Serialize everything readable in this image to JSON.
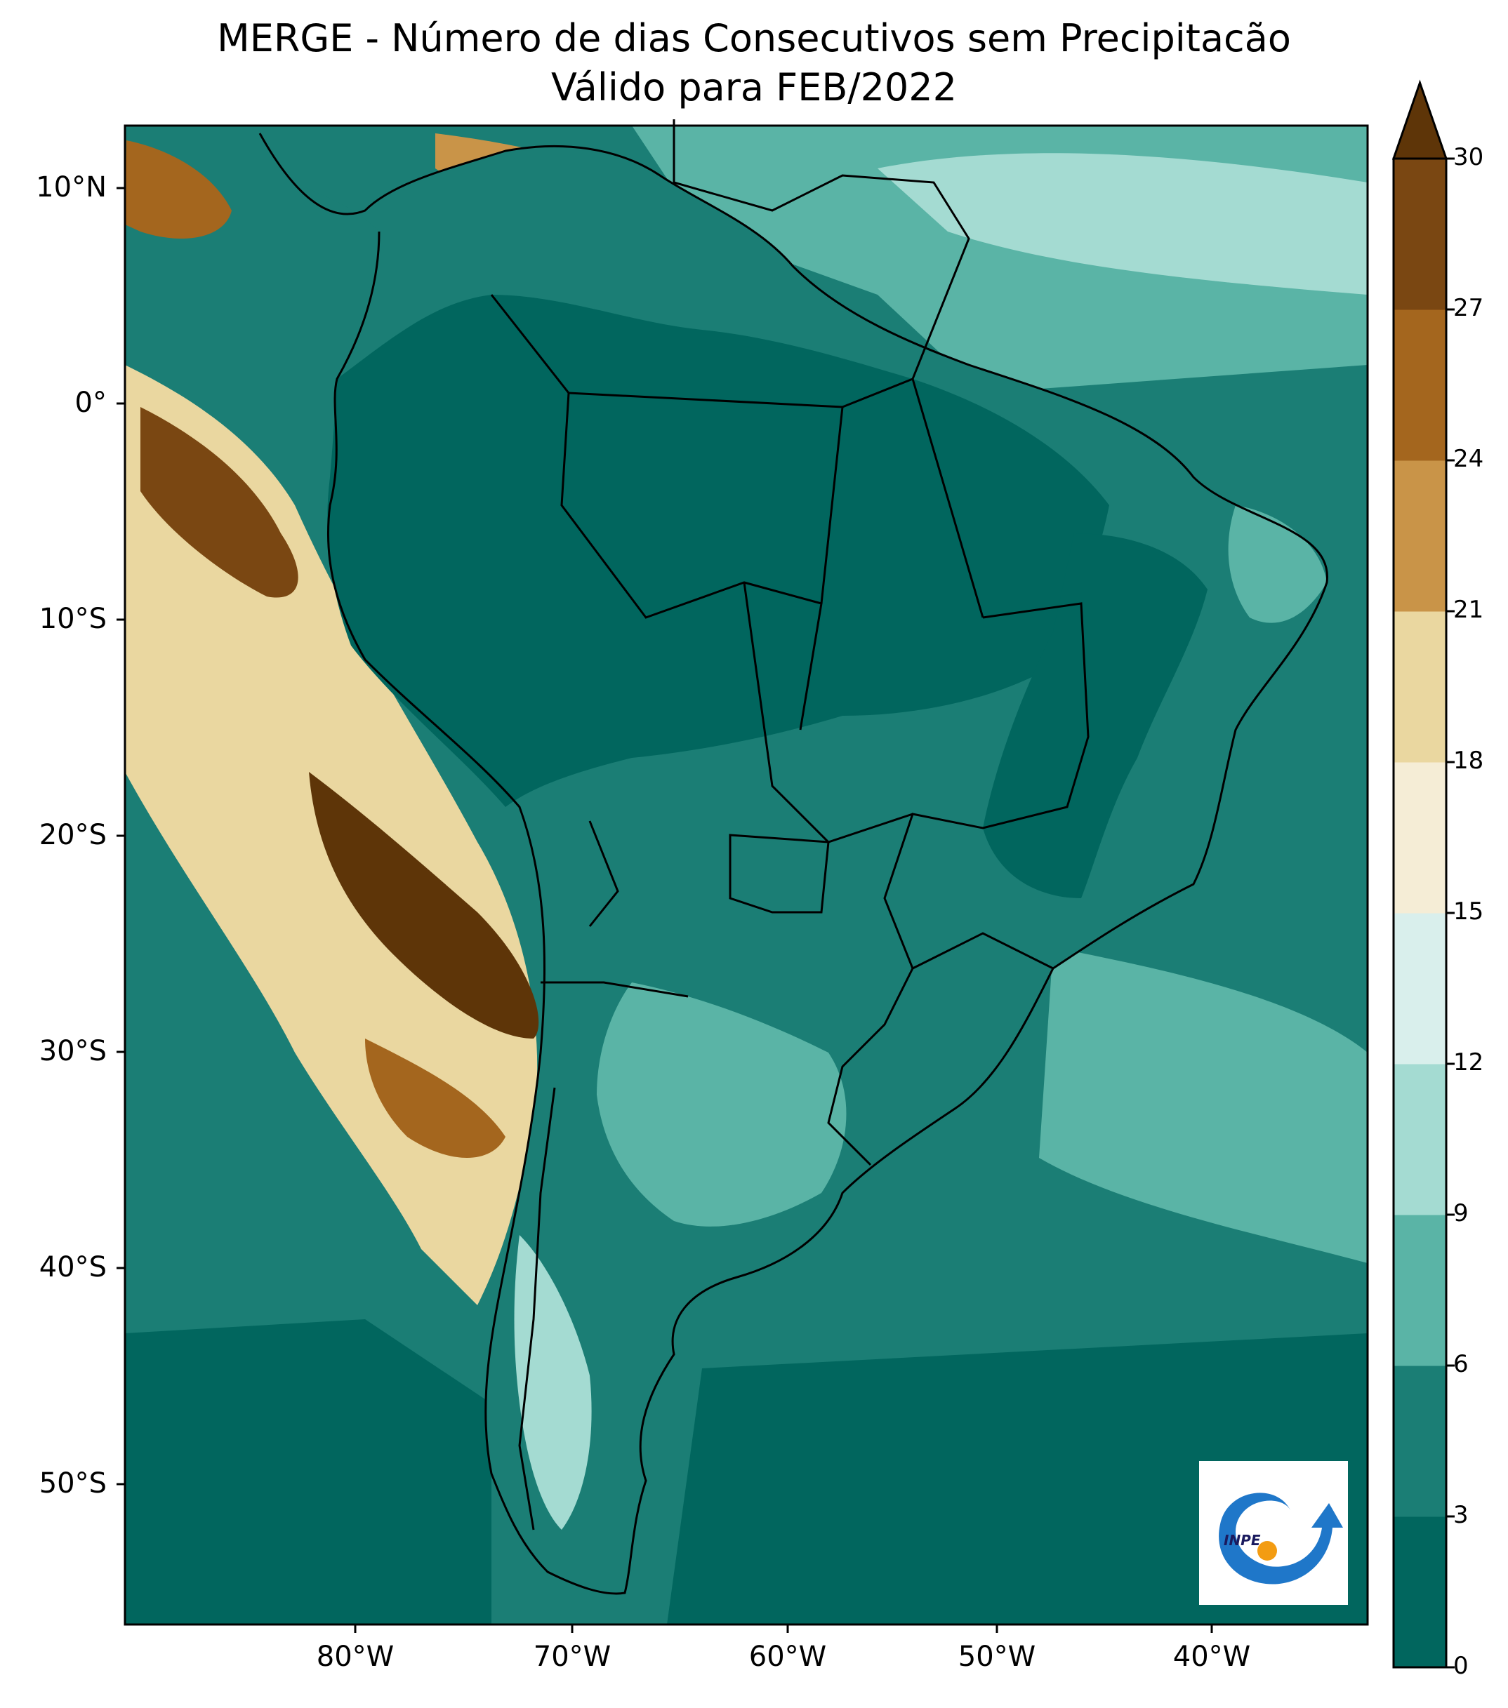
{
  "title_line1": "MERGE - Número de dias Consecutivos sem Precipitacão",
  "title_line2": "Válido para FEB/2022",
  "lat_labels": [
    "10°N",
    "0°",
    "10°S",
    "20°S",
    "30°S",
    "40°S",
    "50°S"
  ],
  "lon_labels": [
    "80°W",
    "70°W",
    "60°W",
    "50°W",
    "40°W"
  ],
  "colorbar": {
    "ticks": [
      "0",
      "3",
      "6",
      "9",
      "12",
      "15",
      "18",
      "21",
      "24",
      "27",
      "30"
    ],
    "colors": [
      "#01665e",
      "#1b7e75",
      "#5ab4a6",
      "#a4dbd2",
      "#d9efec",
      "#f5edd6",
      "#ead7a0",
      "#c99448",
      "#a4661e",
      "#7a4712",
      "#5e3508"
    ],
    "extend": "max"
  },
  "logo": {
    "text": "INPE",
    "name": "inpe-logo"
  }
}
